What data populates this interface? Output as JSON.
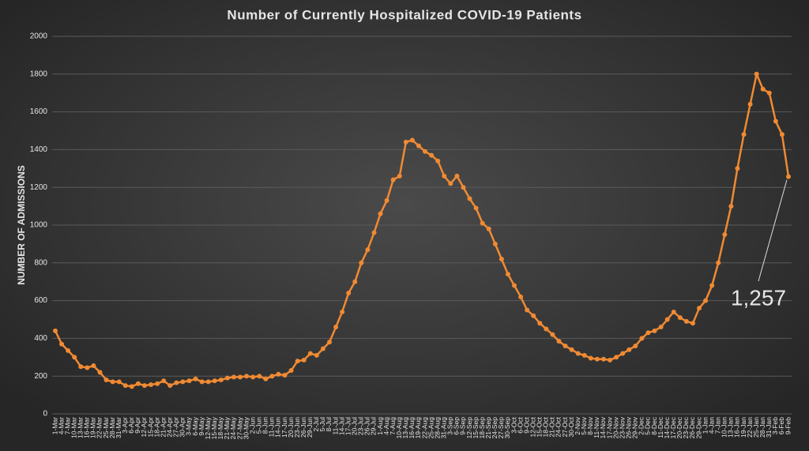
{
  "chart_data": {
    "type": "line",
    "title": "Number of Currently Hospitalized COVID-19 Patients",
    "y_label": "NUMBER OF ADMISSIONS",
    "annotation": "1,257",
    "color": "#f08a33",
    "grid": true,
    "ylim": [
      0,
      2000
    ],
    "yticks": [
      0,
      200,
      400,
      600,
      800,
      1000,
      1200,
      1400,
      1600,
      1800,
      2000
    ],
    "categories": [
      "1-Mar",
      "4-Mar",
      "7-Mar",
      "10-Mar",
      "13-Mar",
      "16-Mar",
      "19-Mar",
      "22-Mar",
      "25-Mar",
      "28-Mar",
      "31-Mar",
      "3-Apr",
      "6-Apr",
      "9-Apr",
      "12-Apr",
      "15-Apr",
      "18-Apr",
      "21-Apr",
      "24-Apr",
      "27-Apr",
      "30-Apr",
      "3-May",
      "6-May",
      "9-May",
      "12-May",
      "15-May",
      "18-May",
      "21-May",
      "24-May",
      "27-May",
      "30-May",
      "2-Jun",
      "5-Jun",
      "8-Jun",
      "11-Jun",
      "14-Jun",
      "17-Jun",
      "20-Jun",
      "23-Jun",
      "26-Jun",
      "29-Jun",
      "2-Jul",
      "5-Jul",
      "8-Jul",
      "11-Jul",
      "14-Jul",
      "17-Jul",
      "20-Jul",
      "23-Jul",
      "26-Jul",
      "29-Jul",
      "1-Aug",
      "4-Aug",
      "7-Aug",
      "10-Aug",
      "13-Aug",
      "16-Aug",
      "19-Aug",
      "22-Aug",
      "25-Aug",
      "28-Aug",
      "31-Aug",
      "3-Sep",
      "6-Sep",
      "9-Sep",
      "12-Sep",
      "15-Sep",
      "18-Sep",
      "21-Sep",
      "24-Sep",
      "27-Sep",
      "30-Sep",
      "3-Oct",
      "6-Oct",
      "9-Oct",
      "12-Oct",
      "15-Oct",
      "18-Oct",
      "21-Oct",
      "24-Oct",
      "27-Oct",
      "30-Oct",
      "2-Nov",
      "5-Nov",
      "8-Nov",
      "11-Nov",
      "14-Nov",
      "17-Nov",
      "20-Nov",
      "23-Nov",
      "26-Nov",
      "29-Nov",
      "2-Dec",
      "5-Dec",
      "8-Dec",
      "11-Dec",
      "14-Dec",
      "17-Dec",
      "20-Dec",
      "23-Dec",
      "26-Dec",
      "29-Dec",
      "1-Jan",
      "4-Jan",
      "7-Jan",
      "10-Jan",
      "13-Jan",
      "16-Jan",
      "19-Jan",
      "22-Jan",
      "25-Jan",
      "28-Jan",
      "31-Jan",
      "3-Feb",
      "6-Feb",
      "9-Feb"
    ],
    "values": [
      440,
      370,
      335,
      300,
      250,
      245,
      255,
      220,
      180,
      170,
      170,
      150,
      145,
      160,
      150,
      155,
      160,
      175,
      150,
      165,
      170,
      175,
      185,
      170,
      170,
      175,
      180,
      190,
      195,
      195,
      200,
      195,
      200,
      185,
      200,
      210,
      205,
      230,
      280,
      285,
      320,
      310,
      345,
      380,
      460,
      540,
      640,
      700,
      800,
      870,
      960,
      1060,
      1130,
      1240,
      1260,
      1440,
      1450,
      1420,
      1390,
      1370,
      1340,
      1260,
      1220,
      1260,
      1200,
      1140,
      1090,
      1010,
      980,
      900,
      820,
      740,
      680,
      620,
      550,
      520,
      480,
      450,
      420,
      385,
      360,
      340,
      320,
      310,
      295,
      290,
      290,
      285,
      300,
      320,
      340,
      360,
      400,
      430,
      440,
      460,
      500,
      540,
      510,
      490,
      480,
      560,
      600,
      680,
      800,
      950,
      1100,
      1300,
      1480,
      1640,
      1800,
      1720,
      1700,
      1550,
      1480,
      1257
    ]
  }
}
